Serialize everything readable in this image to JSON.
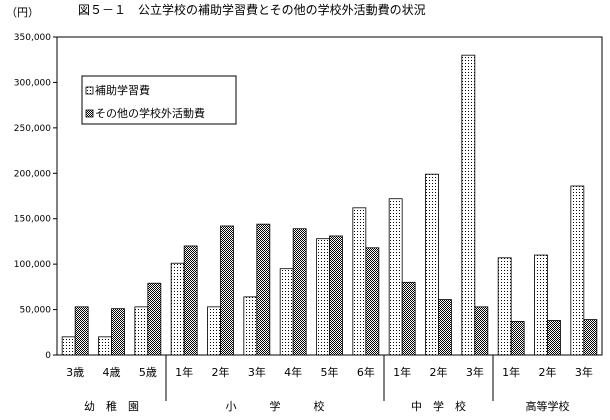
{
  "chart_data": {
    "type": "bar",
    "title": "図５－１　公立学校の補助学習費とその他の学校外活動費の状況",
    "ylabel": "（円）",
    "ylim": [
      0,
      350000
    ],
    "yticks": [
      "0",
      "50,000",
      "100,000",
      "150,000",
      "200,000",
      "250,000",
      "300,000",
      "350,000"
    ],
    "ytick_values": [
      0,
      50000,
      100000,
      150000,
      200000,
      250000,
      300000,
      350000
    ],
    "legend_position": "top-left",
    "categories": [
      "3歳",
      "4歳",
      "5歳",
      "1年",
      "2年",
      "3年",
      "4年",
      "5年",
      "6年",
      "1年",
      "2年",
      "3年",
      "1年",
      "2年",
      "3年"
    ],
    "groups": [
      {
        "label": "幼　稚　園",
        "start": 0,
        "end": 2
      },
      {
        "label": "小　　　学　　　校",
        "start": 3,
        "end": 8
      },
      {
        "label": "中　学　校",
        "start": 9,
        "end": 11
      },
      {
        "label": "高等学校",
        "start": 12,
        "end": 14
      }
    ],
    "series": [
      {
        "name": "補助学習費",
        "pattern": "dots-light",
        "values": [
          20000,
          20000,
          53000,
          101000,
          53000,
          64000,
          95000,
          128000,
          162000,
          172000,
          199000,
          330000,
          107000,
          110000,
          186000
        ]
      },
      {
        "name": "その他の学校外活動費",
        "pattern": "dots-dense",
        "values": [
          53000,
          51000,
          79000,
          120000,
          142000,
          144000,
          139000,
          131000,
          118000,
          80000,
          61000,
          53000,
          37000,
          38000,
          39000
        ]
      }
    ]
  }
}
